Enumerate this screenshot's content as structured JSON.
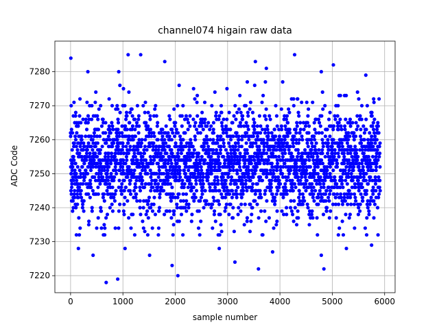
{
  "chart_data": {
    "type": "scatter",
    "title": "channel074 higain raw data",
    "xlabel": "sample number",
    "ylabel": "ADC Code",
    "xlim": [
      -300,
      6200
    ],
    "ylim": [
      7215,
      7289
    ],
    "xticks": [
      0,
      1000,
      2000,
      3000,
      4000,
      5000,
      6000
    ],
    "yticks": [
      7220,
      7230,
      7240,
      7250,
      7260,
      7270,
      7280
    ],
    "xtick_labels": [
      "0",
      "1000",
      "2000",
      "3000",
      "4000",
      "5000",
      "6000"
    ],
    "ytick_labels": [
      "7220",
      "7230",
      "7240",
      "7250",
      "7260",
      "7270",
      "7280"
    ],
    "grid": true,
    "legend": "none",
    "marker_color": "#0000ff",
    "series": [
      {
        "n_points": 5915,
        "x_range": [
          0,
          5914
        ],
        "center": 7253,
        "spread_typical": [
          7235,
          7272
        ],
        "outliers": [
          {
            "x": 5,
            "y": 7284
          },
          {
            "x": 1100,
            "y": 7285
          },
          {
            "x": 1340,
            "y": 7285
          },
          {
            "x": 1800,
            "y": 7283
          },
          {
            "x": 3530,
            "y": 7283
          },
          {
            "x": 4280,
            "y": 7285
          },
          {
            "x": 5020,
            "y": 7282
          },
          {
            "x": 330,
            "y": 7280
          },
          {
            "x": 920,
            "y": 7280
          },
          {
            "x": 3740,
            "y": 7281
          },
          {
            "x": 4790,
            "y": 7280
          },
          {
            "x": 5640,
            "y": 7279
          },
          {
            "x": 680,
            "y": 7218
          },
          {
            "x": 900,
            "y": 7219
          },
          {
            "x": 2050,
            "y": 7220
          },
          {
            "x": 1940,
            "y": 7223
          },
          {
            "x": 3140,
            "y": 7224
          },
          {
            "x": 3590,
            "y": 7222
          },
          {
            "x": 4840,
            "y": 7222
          },
          {
            "x": 430,
            "y": 7226
          },
          {
            "x": 1510,
            "y": 7226
          },
          {
            "x": 4790,
            "y": 7226
          },
          {
            "x": 150,
            "y": 7228
          },
          {
            "x": 1040,
            "y": 7228
          },
          {
            "x": 2840,
            "y": 7228
          },
          {
            "x": 3860,
            "y": 7227
          },
          {
            "x": 5270,
            "y": 7228
          },
          {
            "x": 5750,
            "y": 7229
          }
        ]
      }
    ]
  }
}
